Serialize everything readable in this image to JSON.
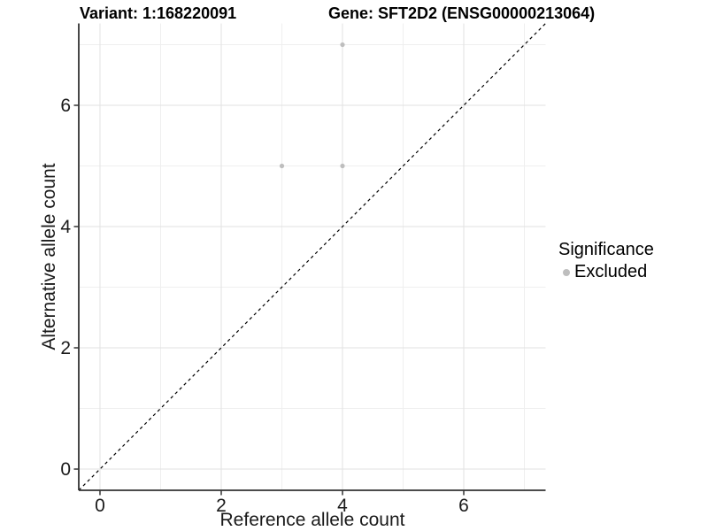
{
  "title": {
    "variant": "Variant: 1:168220091",
    "gene": "Gene: SFT2D2 (ENSG00000213064)"
  },
  "axis": {
    "x_label": "Reference allele count",
    "y_label": "Alternative allele count",
    "x_ticks": [
      "0",
      "2",
      "4",
      "6"
    ],
    "y_ticks": [
      "0",
      "2",
      "4",
      "6"
    ]
  },
  "legend": {
    "title": "Significance",
    "items": [
      {
        "label": "Excluded",
        "color": "#bebebe"
      }
    ]
  },
  "colors": {
    "point": "#bebebe",
    "grid_major": "#e2e2e2",
    "grid_minor": "#efefef",
    "axis_line": "#333333",
    "tick_text": "#1a1a1a",
    "identity_line": "#000000",
    "background": "#ffffff"
  },
  "chart_data": {
    "type": "scatter",
    "title": "Variant: 1:168220091    Gene: SFT2D2 (ENSG00000213064)",
    "xlabel": "Reference allele count",
    "ylabel": "Alternative allele count",
    "xlim": [
      -0.35,
      7.35
    ],
    "ylim": [
      -0.35,
      7.35
    ],
    "x_breaks": [
      0,
      2,
      4,
      6
    ],
    "y_breaks": [
      0,
      2,
      4,
      6
    ],
    "minor_breaks": [
      1,
      3,
      5,
      7
    ],
    "grid": true,
    "legend_position": "right",
    "series": [
      {
        "name": "Excluded",
        "color": "#bebebe",
        "points": [
          [
            4,
            7
          ],
          [
            3,
            5
          ],
          [
            4,
            5
          ]
        ]
      }
    ],
    "reference_line": {
      "type": "identity",
      "style": "dashed",
      "from": [
        -0.35,
        -0.35
      ],
      "to": [
        7.35,
        7.35
      ]
    }
  }
}
